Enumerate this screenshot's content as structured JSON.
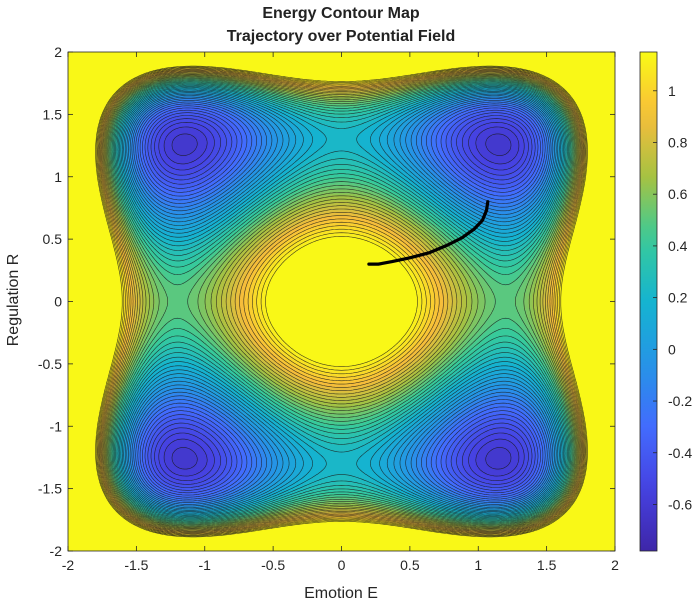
{
  "chart_data": {
    "type": "heatmap",
    "title": "Energy Contour Map",
    "subtitle": "Trajectory over Potential Field",
    "xlabel": "Emotion E",
    "ylabel": "Regulation R",
    "xlim": [
      -2,
      2
    ],
    "ylim": [
      -2,
      2
    ],
    "xticks": [
      "-2",
      "-1.5",
      "-1",
      "-0.5",
      "0",
      "0.5",
      "1",
      "1.5",
      "2"
    ],
    "yticks": [
      "-2",
      "-1.5",
      "-1",
      "-0.5",
      "0",
      "0.5",
      "1",
      "1.5",
      "2"
    ],
    "colorbar": {
      "range": [
        -0.78,
        1.15
      ],
      "ticks": [
        "-0.6",
        "-0.4",
        "-0.2",
        "0",
        "0.2",
        "0.4",
        "0.6",
        "0.8",
        "1"
      ],
      "colormap": "parula"
    },
    "minima": [
      {
        "x": -1.2,
        "y": 1.3
      },
      {
        "x": 1.2,
        "y": 1.3
      },
      {
        "x": -1.2,
        "y": -1.3
      },
      {
        "x": 1.2,
        "y": -1.3
      }
    ],
    "trajectory": {
      "x": [
        1.07,
        1.06,
        1.03,
        0.97,
        0.88,
        0.77,
        0.64,
        0.5,
        0.37,
        0.27,
        0.2
      ],
      "y": [
        0.8,
        0.73,
        0.65,
        0.58,
        0.51,
        0.45,
        0.39,
        0.35,
        0.32,
        0.3,
        0.3
      ]
    },
    "grid": false
  },
  "colors": {
    "trajectory": "#000000",
    "contour_lines": "#1a1a1a"
  }
}
